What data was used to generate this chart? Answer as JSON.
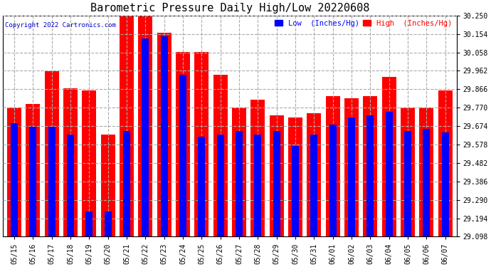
{
  "title": "Barometric Pressure Daily High/Low 20220608",
  "copyright": "Copyright 2022 Cartronics.com",
  "legend_low": "Low  (Inches/Hg)",
  "legend_high": "High  (Inches/Hg)",
  "dates": [
    "05/15",
    "05/16",
    "05/17",
    "05/18",
    "05/19",
    "05/20",
    "05/21",
    "05/22",
    "05/23",
    "05/24",
    "05/25",
    "05/26",
    "05/27",
    "05/28",
    "05/29",
    "05/30",
    "05/31",
    "06/01",
    "06/02",
    "06/03",
    "06/04",
    "06/05",
    "06/06",
    "06/07"
  ],
  "high": [
    29.77,
    29.79,
    29.96,
    29.87,
    29.86,
    29.63,
    30.25,
    30.25,
    30.16,
    30.06,
    30.06,
    29.94,
    29.77,
    29.81,
    29.73,
    29.72,
    29.74,
    29.83,
    29.82,
    29.83,
    29.93,
    29.77,
    29.77,
    29.86
  ],
  "low": [
    29.69,
    29.67,
    29.67,
    29.63,
    29.23,
    29.23,
    29.65,
    30.13,
    30.14,
    29.94,
    29.62,
    29.63,
    29.65,
    29.63,
    29.65,
    29.57,
    29.63,
    29.68,
    29.72,
    29.73,
    29.75,
    29.65,
    29.66,
    29.64
  ],
  "ylim_min": 29.098,
  "ylim_max": 30.25,
  "yticks": [
    29.098,
    29.194,
    29.29,
    29.386,
    29.482,
    29.578,
    29.674,
    29.77,
    29.866,
    29.962,
    30.058,
    30.154,
    30.25
  ],
  "high_color": "#ff0000",
  "low_color": "#0000ff",
  "bg_color": "#ffffff",
  "grid_color": "#aaaaaa",
  "title_fontsize": 11,
  "tick_fontsize": 7,
  "bar_width": 0.38
}
